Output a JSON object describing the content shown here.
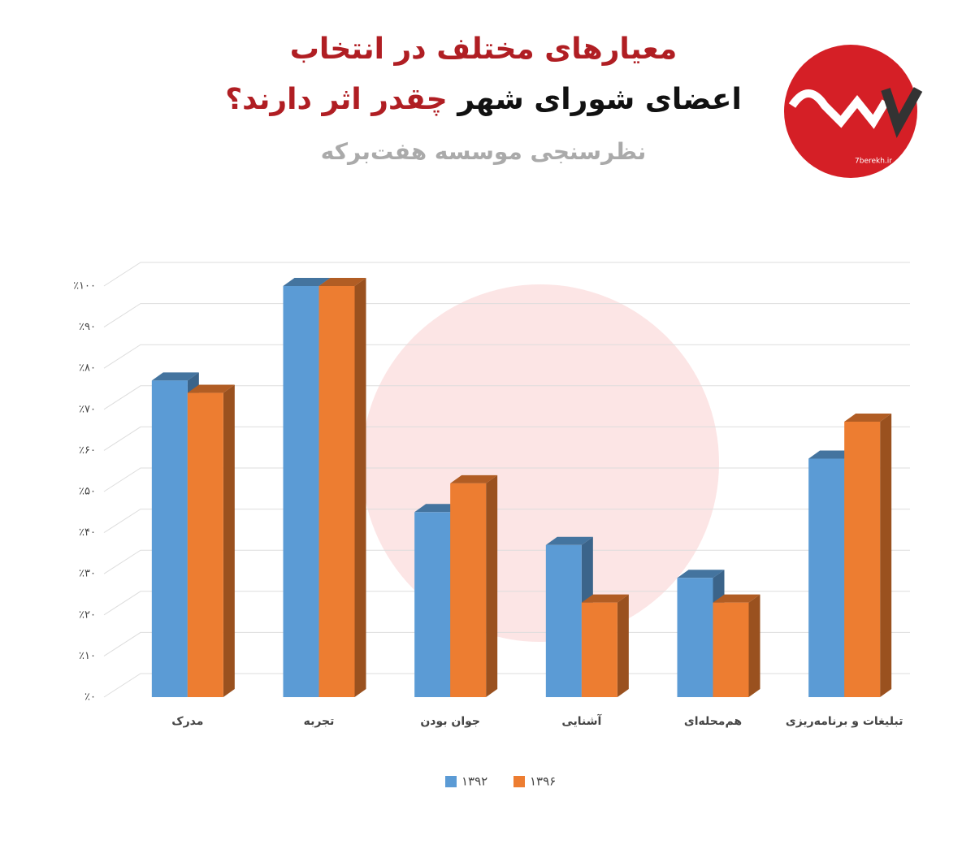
{
  "header": {
    "title_line1": "معیارهای مختلف در انتخاب",
    "title_line2": [
      "اعضای شورای شهر",
      "چقدر اثر دارند؟"
    ],
    "subtitle": "نظرسنجی موسسه هفت‌برکه",
    "logo_text": "7berekh.ir"
  },
  "chart_data": {
    "type": "bar3d",
    "categories": [
      "مدرک",
      "تجربه",
      "جوان بودن",
      "آشنایی",
      "هم‌محله‌ای",
      "تبلیغات و برنامه‌ریزی"
    ],
    "series": [
      {
        "name": "۱۳۹۲",
        "color": "#5b9bd5",
        "values": [
          77,
          100,
          45,
          37,
          29,
          58
        ]
      },
      {
        "name": "۱۳۹۶",
        "color": "#ed7d31",
        "values": [
          74,
          100,
          52,
          23,
          23,
          67
        ]
      }
    ],
    "ylim": [
      0,
      100
    ],
    "yticks": [
      {
        "value": 0,
        "label": "٪۰"
      },
      {
        "value": 10,
        "label": "٪۱۰"
      },
      {
        "value": 20,
        "label": "٪۲۰"
      },
      {
        "value": 30,
        "label": "٪۳۰"
      },
      {
        "value": 40,
        "label": "٪۴۰"
      },
      {
        "value": 50,
        "label": "٪۵۰"
      },
      {
        "value": 60,
        "label": "٪۶۰"
      },
      {
        "value": 70,
        "label": "٪۷۰"
      },
      {
        "value": 80,
        "label": "٪۸۰"
      },
      {
        "value": 90,
        "label": "٪۹۰"
      },
      {
        "value": 100,
        "label": "٪۱۰۰"
      }
    ],
    "grid": true
  }
}
